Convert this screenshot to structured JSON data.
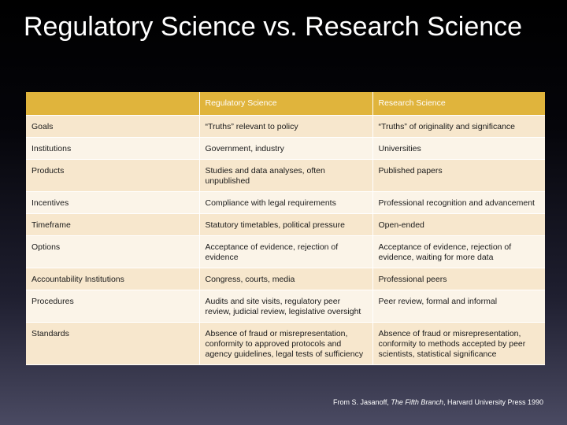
{
  "title": "Regulatory Science vs. Research Science",
  "table": {
    "headers": [
      "",
      "Regulatory Science",
      "Research Science"
    ],
    "rows": [
      [
        "Goals",
        "“Truths” relevant to policy",
        "“Truths” of originality and significance"
      ],
      [
        "Institutions",
        "Government, industry",
        "Universities"
      ],
      [
        "Products",
        "Studies and data analyses, often unpublished",
        "Published papers"
      ],
      [
        "Incentives",
        "Compliance with legal requirements",
        "Professional recognition and advancement"
      ],
      [
        "Timeframe",
        "Statutory timetables, political pressure",
        "Open-ended"
      ],
      [
        "Options",
        "Acceptance of evidence, rejection of evidence",
        "Acceptance of evidence, rejection of evidence, waiting for more data"
      ],
      [
        "Accountability Institutions",
        "Congress, courts, media",
        "Professional peers"
      ],
      [
        "Procedures",
        "Audits and site visits, regulatory peer review, judicial review, legislative oversight",
        "Peer review, formal and informal"
      ],
      [
        "Standards",
        "Absence of fraud or misrepresentation, conformity to approved protocols and agency guidelines, legal tests of sufficiency",
        "Absence of fraud or misrepresentation, conformity to methods accepted by peer scientists, statistical significance"
      ]
    ]
  },
  "source": {
    "prefix": "From S. Jasanoff, ",
    "book_title": "The Fifth Branch",
    "suffix": ", Harvard University Press 1990"
  },
  "colors": {
    "header_bg": "#e0b43c",
    "row_dark": "#f7e7cd",
    "row_light": "#fbf4e8",
    "title_text": "#ffffff"
  }
}
